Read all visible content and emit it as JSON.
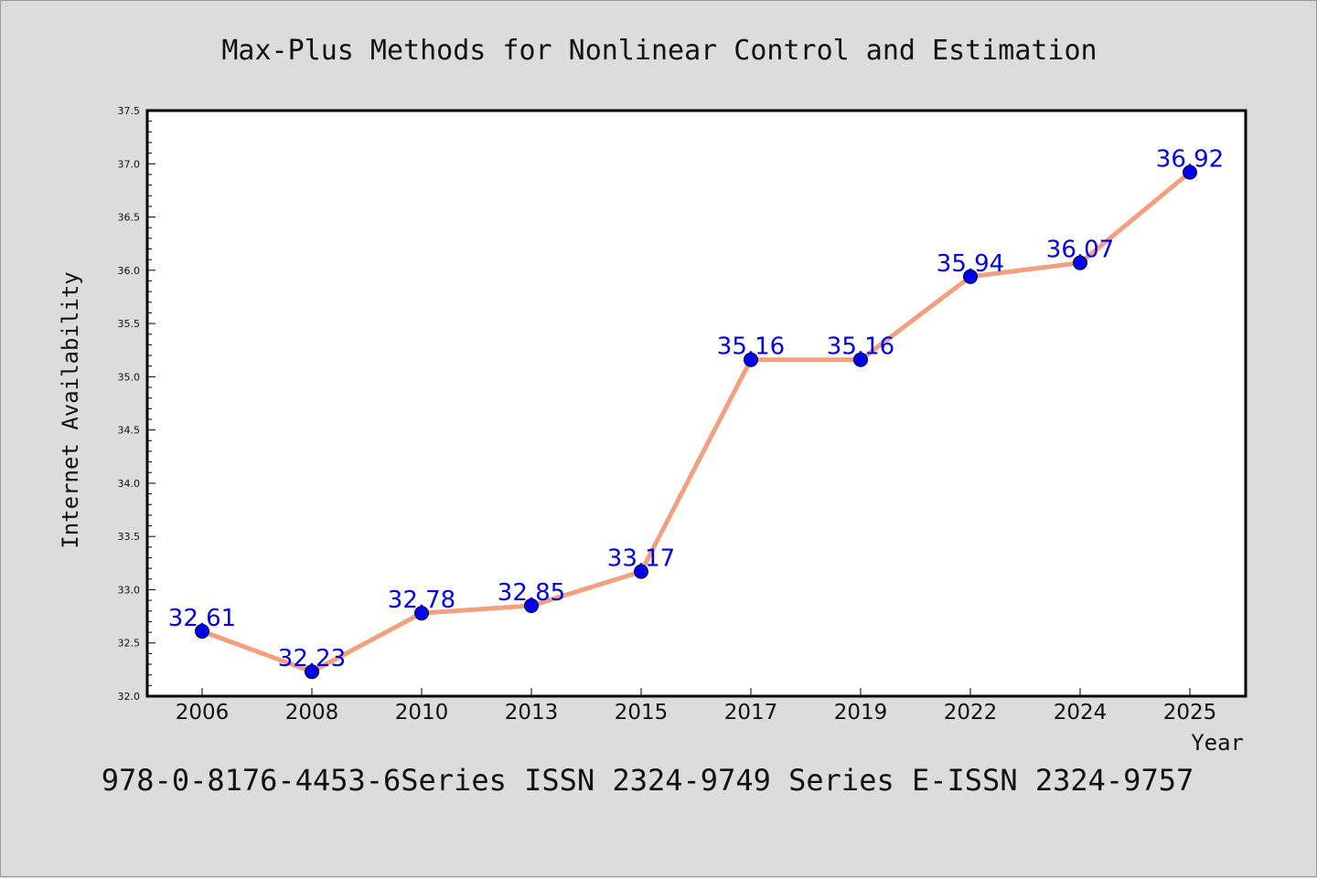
{
  "chart_data": {
    "type": "line",
    "title": "Max-Plus Methods for Nonlinear Control and Estimation",
    "xlabel": "Year",
    "ylabel": "Internet Availability",
    "categories": [
      "2006",
      "2008",
      "2010",
      "2013",
      "2015",
      "2017",
      "2019",
      "2022",
      "2024",
      "2025"
    ],
    "values": [
      32.61,
      32.23,
      32.78,
      32.85,
      33.17,
      35.16,
      35.16,
      35.94,
      36.07,
      36.92
    ],
    "data_labels": [
      "32.61",
      "32.23",
      "32.78",
      "32.85",
      "33.17",
      "35.16",
      "35.16",
      "35.94",
      "36.07",
      "36.92"
    ],
    "ylim": [
      32.0,
      37.5
    ],
    "yticks": [
      "32.0",
      "32.5",
      "33.0",
      "33.5",
      "34.0",
      "34.5",
      "35.0",
      "35.5",
      "36.0",
      "36.5",
      "37.0",
      "37.5"
    ],
    "grid": false,
    "legend": "none",
    "line_color": "#f4a07f",
    "marker_color": "#0000ee",
    "label_color": "#0000ee"
  },
  "footer": {
    "text": "978-0-8176-4453-6Series ISSN 2324-9749 Series E-ISSN 2324-9757"
  }
}
